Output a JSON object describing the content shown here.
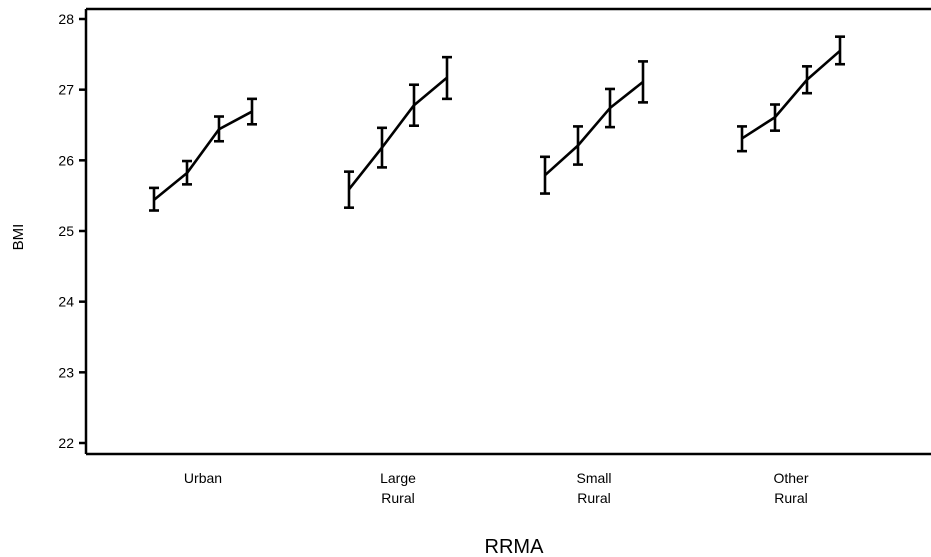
{
  "chart_data": {
    "type": "line",
    "xlabel": "RRMA",
    "ylabel": "BMI",
    "ylim": [
      22,
      28
    ],
    "yticks": [
      "22",
      "23",
      "24",
      "25",
      "26",
      "27",
      "28"
    ],
    "groups": [
      {
        "label_lines": [
          "Urban"
        ],
        "points": [
          {
            "mean": 25.44,
            "low": 25.29,
            "high": 25.61
          },
          {
            "mean": 25.82,
            "low": 25.66,
            "high": 25.99
          },
          {
            "mean": 26.44,
            "low": 26.27,
            "high": 26.62
          },
          {
            "mean": 26.69,
            "low": 26.51,
            "high": 26.87
          }
        ]
      },
      {
        "label_lines": [
          "Large",
          "Rural"
        ],
        "points": [
          {
            "mean": 25.59,
            "low": 25.33,
            "high": 25.84
          },
          {
            "mean": 26.18,
            "low": 25.9,
            "high": 26.46
          },
          {
            "mean": 26.78,
            "low": 26.49,
            "high": 27.07
          },
          {
            "mean": 27.17,
            "low": 26.87,
            "high": 27.46
          }
        ]
      },
      {
        "label_lines": [
          "Small",
          "Rural"
        ],
        "points": [
          {
            "mean": 25.79,
            "low": 25.53,
            "high": 26.05
          },
          {
            "mean": 26.21,
            "low": 25.94,
            "high": 26.48
          },
          {
            "mean": 26.74,
            "low": 26.47,
            "high": 27.01
          },
          {
            "mean": 27.11,
            "low": 26.82,
            "high": 27.4
          }
        ]
      },
      {
        "label_lines": [
          "Other",
          "Rural"
        ],
        "points": [
          {
            "mean": 26.31,
            "low": 26.13,
            "high": 26.48
          },
          {
            "mean": 26.61,
            "low": 26.42,
            "high": 26.79
          },
          {
            "mean": 27.14,
            "low": 26.95,
            "high": 27.33
          },
          {
            "mean": 27.55,
            "low": 27.36,
            "high": 27.75
          }
        ]
      }
    ]
  }
}
